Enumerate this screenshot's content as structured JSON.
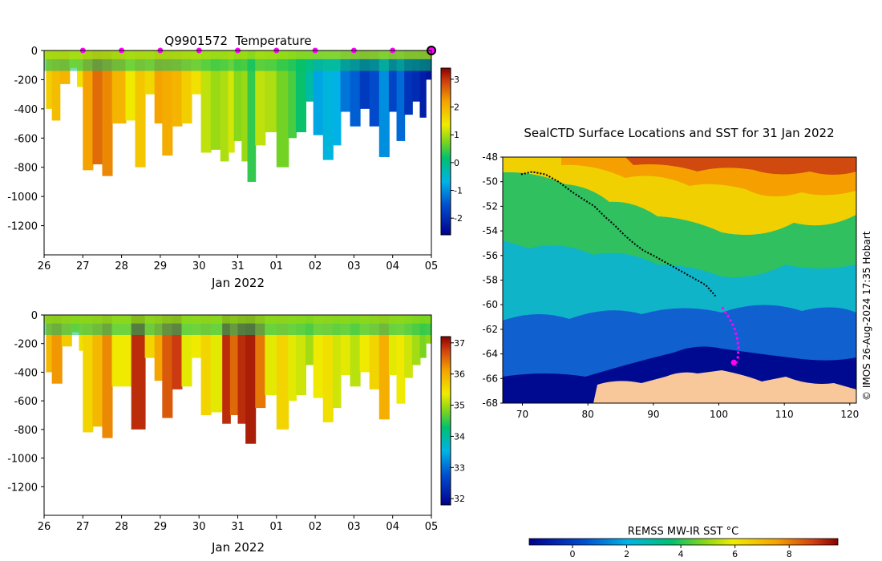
{
  "chart_data": [
    {
      "type": "heatmap",
      "title": "Q9901572  Temperature",
      "xlabel": "Jan 2022",
      "x_ticks": [
        "26",
        "27",
        "28",
        "29",
        "30",
        "31",
        "01",
        "02",
        "03",
        "04",
        "05"
      ],
      "y_ticks": [
        0,
        -200,
        -400,
        -600,
        -800,
        -1000,
        -1200
      ],
      "ylim": [
        -1400,
        0
      ],
      "colorbar": {
        "ticks": [
          3,
          2,
          1,
          0,
          -1,
          -2
        ],
        "range": [
          -2.6,
          3.4
        ]
      },
      "surface_markers_day_index": [
        1,
        2,
        3,
        4,
        5,
        6,
        7,
        8,
        9
      ],
      "latest_marker_day_index": 10,
      "profiles": [
        {
          "day": 0.05,
          "depth": -400,
          "t": 1.7
        },
        {
          "day": 0.2,
          "depth": -480,
          "t": 1.9
        },
        {
          "day": 0.4,
          "depth": -230,
          "t": 2.0
        },
        {
          "day": 0.65,
          "depth": -120,
          "t": 1.3
        },
        {
          "day": 0.85,
          "depth": -250,
          "t": 1.5
        },
        {
          "day": 1.0,
          "depth": -820,
          "t": 2.2
        },
        {
          "day": 1.25,
          "depth": -780,
          "t": 2.6
        },
        {
          "day": 1.5,
          "depth": -860,
          "t": 2.4
        },
        {
          "day": 1.75,
          "depth": -500,
          "t": 2.0
        },
        {
          "day": 2.1,
          "depth": -480,
          "t": 1.4
        },
        {
          "day": 2.35,
          "depth": -800,
          "t": 1.8
        },
        {
          "day": 2.6,
          "depth": -300,
          "t": 1.6
        },
        {
          "day": 2.85,
          "depth": -500,
          "t": 2.2
        },
        {
          "day": 3.05,
          "depth": -720,
          "t": 2.1
        },
        {
          "day": 3.3,
          "depth": -520,
          "t": 2.0
        },
        {
          "day": 3.55,
          "depth": -500,
          "t": 1.7
        },
        {
          "day": 3.8,
          "depth": -300,
          "t": 1.5
        },
        {
          "day": 4.05,
          "depth": -700,
          "t": 1.1
        },
        {
          "day": 4.3,
          "depth": -680,
          "t": 0.9
        },
        {
          "day": 4.55,
          "depth": -760,
          "t": 1.0
        },
        {
          "day": 4.75,
          "depth": -700,
          "t": 1.2
        },
        {
          "day": 4.9,
          "depth": -620,
          "t": 0.8
        },
        {
          "day": 5.1,
          "depth": -760,
          "t": 0.9
        },
        {
          "day": 5.25,
          "depth": -900,
          "t": 0.4
        },
        {
          "day": 5.45,
          "depth": -650,
          "t": 1.1
        },
        {
          "day": 5.7,
          "depth": -560,
          "t": 1.0
        },
        {
          "day": 6.0,
          "depth": -800,
          "t": 0.7
        },
        {
          "day": 6.3,
          "depth": -600,
          "t": 0.5
        },
        {
          "day": 6.5,
          "depth": -560,
          "t": 0.2
        },
        {
          "day": 6.75,
          "depth": -350,
          "t": -0.2
        },
        {
          "day": 6.95,
          "depth": -580,
          "t": -0.8
        },
        {
          "day": 7.2,
          "depth": -750,
          "t": -0.6
        },
        {
          "day": 7.45,
          "depth": -650,
          "t": -0.7
        },
        {
          "day": 7.65,
          "depth": -420,
          "t": -1.2
        },
        {
          "day": 7.9,
          "depth": -520,
          "t": -1.4
        },
        {
          "day": 8.15,
          "depth": -400,
          "t": -1.8
        },
        {
          "day": 8.4,
          "depth": -520,
          "t": -1.6
        },
        {
          "day": 8.65,
          "depth": -730,
          "t": -1.0
        },
        {
          "day": 8.9,
          "depth": -420,
          "t": -1.7
        },
        {
          "day": 9.1,
          "depth": -620,
          "t": -1.3
        },
        {
          "day": 9.3,
          "depth": -440,
          "t": -1.9
        },
        {
          "day": 9.5,
          "depth": -350,
          "t": -2.0
        },
        {
          "day": 9.7,
          "depth": -460,
          "t": -2.2
        },
        {
          "day": 9.85,
          "depth": -200,
          "t": -2.3
        }
      ]
    },
    {
      "type": "heatmap",
      "title": "",
      "xlabel": "Jan 2022",
      "x_ticks": [
        "26",
        "27",
        "28",
        "29",
        "30",
        "31",
        "01",
        "02",
        "03",
        "04",
        "05"
      ],
      "y_ticks": [
        0,
        -200,
        -400,
        -600,
        -800,
        -1000,
        -1200
      ],
      "ylim": [
        -1400,
        0
      ],
      "colorbar": {
        "ticks": [
          37,
          36,
          35,
          34,
          33,
          32
        ],
        "range": [
          31.8,
          37.2
        ]
      },
      "profiles": [
        {
          "day": 0.05,
          "depth": -400,
          "s": 35.9
        },
        {
          "day": 0.2,
          "depth": -480,
          "s": 36.2
        },
        {
          "day": 0.45,
          "depth": -220,
          "s": 35.7
        },
        {
          "day": 0.7,
          "depth": -120,
          "s": 35.2
        },
        {
          "day": 0.9,
          "depth": -250,
          "s": 35.5
        },
        {
          "day": 1.0,
          "depth": -820,
          "s": 35.6
        },
        {
          "day": 1.25,
          "depth": -780,
          "s": 35.9
        },
        {
          "day": 1.5,
          "depth": -860,
          "s": 36.3
        },
        {
          "day": 1.75,
          "depth": -500,
          "s": 35.4
        },
        {
          "day": 2.25,
          "depth": -800,
          "s": 36.9
        },
        {
          "day": 2.6,
          "depth": -300,
          "s": 35.6
        },
        {
          "day": 2.85,
          "depth": -460,
          "s": 36.1
        },
        {
          "day": 3.05,
          "depth": -720,
          "s": 36.6
        },
        {
          "day": 3.3,
          "depth": -520,
          "s": 36.8
        },
        {
          "day": 3.55,
          "depth": -500,
          "s": 35.3
        },
        {
          "day": 3.8,
          "depth": -300,
          "s": 35.4
        },
        {
          "day": 4.05,
          "depth": -700,
          "s": 35.6
        },
        {
          "day": 4.3,
          "depth": -680,
          "s": 35.3
        },
        {
          "day": 4.6,
          "depth": -760,
          "s": 36.9
        },
        {
          "day": 4.8,
          "depth": -700,
          "s": 36.5
        },
        {
          "day": 5.0,
          "depth": -760,
          "s": 36.9
        },
        {
          "day": 5.2,
          "depth": -900,
          "s": 37.0
        },
        {
          "day": 5.45,
          "depth": -650,
          "s": 36.4
        },
        {
          "day": 5.7,
          "depth": -560,
          "s": 35.3
        },
        {
          "day": 6.0,
          "depth": -800,
          "s": 35.6
        },
        {
          "day": 6.3,
          "depth": -600,
          "s": 35.3
        },
        {
          "day": 6.5,
          "depth": -560,
          "s": 35.2
        },
        {
          "day": 6.75,
          "depth": -350,
          "s": 35.0
        },
        {
          "day": 6.95,
          "depth": -580,
          "s": 35.4
        },
        {
          "day": 7.2,
          "depth": -750,
          "s": 35.5
        },
        {
          "day": 7.45,
          "depth": -650,
          "s": 35.2
        },
        {
          "day": 7.65,
          "depth": -420,
          "s": 35.3
        },
        {
          "day": 7.9,
          "depth": -500,
          "s": 35.1
        },
        {
          "day": 8.15,
          "depth": -400,
          "s": 35.4
        },
        {
          "day": 8.4,
          "depth": -520,
          "s": 35.6
        },
        {
          "day": 8.65,
          "depth": -730,
          "s": 36.0
        },
        {
          "day": 8.9,
          "depth": -420,
          "s": 35.3
        },
        {
          "day": 9.1,
          "depth": -620,
          "s": 35.4
        },
        {
          "day": 9.3,
          "depth": -440,
          "s": 35.2
        },
        {
          "day": 9.5,
          "depth": -350,
          "s": 35.0
        },
        {
          "day": 9.7,
          "depth": -300,
          "s": 34.8
        },
        {
          "day": 9.85,
          "depth": -200,
          "s": 34.9
        }
      ]
    },
    {
      "type": "heatmap",
      "title": "SealCTD Surface Locations and SST for 31 Jan 2022",
      "xlabel": "",
      "x_ticks": [
        70,
        80,
        90,
        100,
        110,
        120
      ],
      "y_ticks": [
        -48,
        -50,
        -52,
        -54,
        -56,
        -58,
        -60,
        -62,
        -64,
        -66,
        -68
      ],
      "xlim": [
        67,
        121
      ],
      "ylim": [
        -68,
        -48
      ],
      "credit": "© IMOS 26-Aug-2024 17:35 Hobart",
      "colorbar": {
        "label": "REMSS MW-IR SST °C",
        "ticks": [
          0,
          2,
          4,
          6,
          8
        ],
        "range": [
          -1.6,
          9.8
        ]
      },
      "track_past": [
        [
          69.8,
          -49.4
        ],
        [
          71.5,
          -49.2
        ],
        [
          73.5,
          -49.4
        ],
        [
          75.5,
          -50.0
        ],
        [
          77.5,
          -50.8
        ],
        [
          79.5,
          -51.5
        ],
        [
          81.0,
          -52.0
        ],
        [
          82.5,
          -52.8
        ],
        [
          84.0,
          -53.5
        ],
        [
          85.5,
          -54.3
        ],
        [
          87.0,
          -55.0
        ],
        [
          88.5,
          -55.6
        ],
        [
          90.0,
          -56.0
        ],
        [
          92.0,
          -56.6
        ],
        [
          94.0,
          -57.2
        ],
        [
          96.0,
          -57.8
        ],
        [
          98.0,
          -58.4
        ],
        [
          99.5,
          -59.3
        ]
      ],
      "track_recent": [
        [
          100.5,
          -60.2
        ],
        [
          101.5,
          -61.0
        ],
        [
          102.3,
          -61.8
        ],
        [
          102.8,
          -62.7
        ],
        [
          103.0,
          -63.5
        ],
        [
          102.9,
          -64.3
        ],
        [
          102.6,
          -65.0
        ]
      ],
      "latest_position": [
        102.3,
        -64.7
      ]
    }
  ]
}
